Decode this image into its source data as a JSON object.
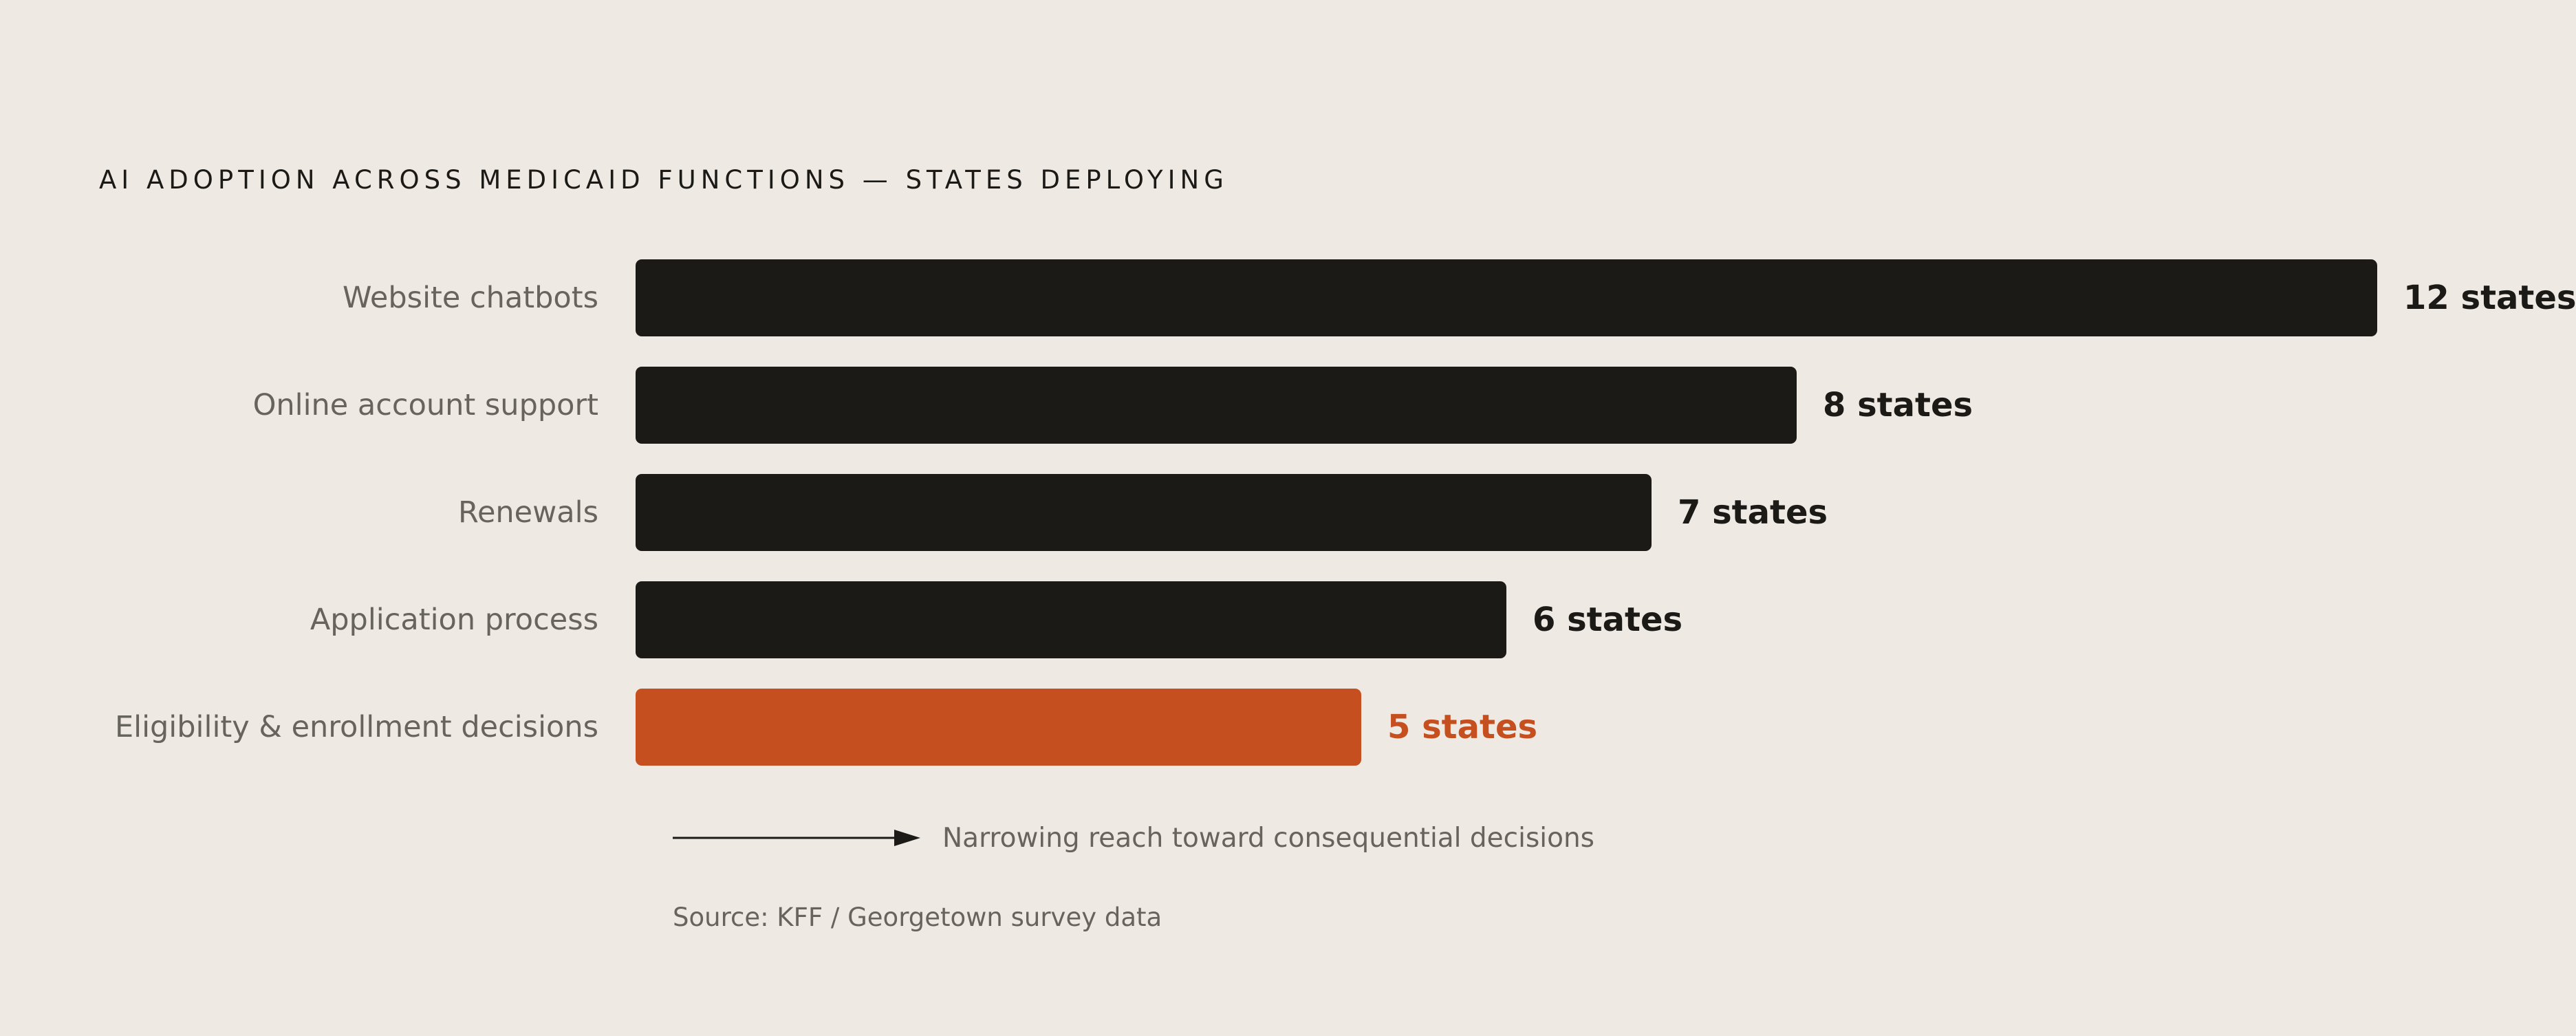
{
  "chart_data": {
    "type": "bar",
    "orientation": "horizontal",
    "title": "AI ADOPTION ACROSS MEDICAID FUNCTIONS — STATES DEPLOYING",
    "categories": [
      "Website chatbots",
      "Online account support",
      "Renewals",
      "Application process",
      "Eligibility & enrollment decisions"
    ],
    "values": [
      12,
      8,
      7,
      6,
      5
    ],
    "value_labels": [
      "12 states",
      "8 states",
      "7 states",
      "6 states",
      "5 states"
    ],
    "unit": "states",
    "xlim": [
      0,
      12
    ],
    "grid": false,
    "colors": {
      "bar": "#1c1a17",
      "highlight": "#c54f1f",
      "category_label": "#67635d",
      "background": "#eeeae3"
    },
    "highlight_index": 4,
    "annotation": "Narrowing reach toward consequential decisions",
    "source": "Source: KFF / Georgetown survey data"
  }
}
